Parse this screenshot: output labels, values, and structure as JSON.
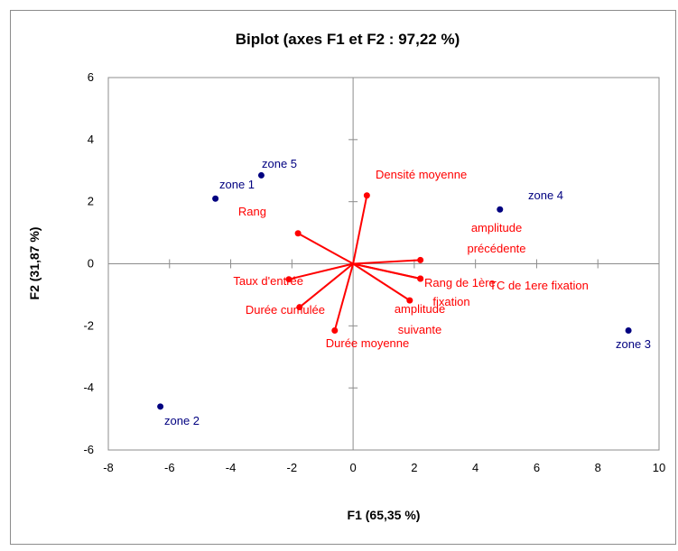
{
  "chart_data": {
    "type": "scatter",
    "title": "Biplot (axes F1 et F2 : 97,22 %)",
    "xlabel": "F1 (65,35 %)",
    "ylabel": "F2 (31,87 %)",
    "xlim": [
      -8,
      10
    ],
    "ylim": [
      -6,
      6
    ],
    "xticks": [
      "-8",
      "-6",
      "-4",
      "-2",
      "0",
      "2",
      "4",
      "6",
      "8",
      "10"
    ],
    "yticks": [
      "-6",
      "-4",
      "-2",
      "0",
      "2",
      "4",
      "6"
    ],
    "grid": false,
    "observations": {
      "color": "#000080",
      "points": [
        {
          "label": "zone 5",
          "x": -3.0,
          "y": 2.85
        },
        {
          "label": "zone 1",
          "x": -4.5,
          "y": 2.1
        },
        {
          "label": "zone 4",
          "x": 4.8,
          "y": 1.75
        },
        {
          "label": "zone 3",
          "x": 9.0,
          "y": -2.15
        },
        {
          "label": "zone 2",
          "x": -6.3,
          "y": -4.6
        }
      ]
    },
    "variables": {
      "color": "#ff0000",
      "vectors": [
        {
          "label": "Densité moyenne",
          "x": 0.45,
          "y": 2.2
        },
        {
          "label": "Rang",
          "x": -1.8,
          "y": 0.98
        },
        {
          "label": "amplitude précédente",
          "x": 2.2,
          "y": 0.12
        },
        {
          "label": "Rang de 1ère fixation",
          "x": 2.2,
          "y": -0.48
        },
        {
          "label": "TC de 1ere fixation",
          "x": 2.2,
          "y": -0.48
        },
        {
          "label": "Taux d'entrée",
          "x": -2.1,
          "y": -0.5
        },
        {
          "label": "Durée cumulée",
          "x": -1.75,
          "y": -1.4
        },
        {
          "label": "amplitude suivante",
          "x": 1.85,
          "y": -1.18
        },
        {
          "label": "Durée moyenne",
          "x": -0.6,
          "y": -2.15
        }
      ]
    }
  }
}
